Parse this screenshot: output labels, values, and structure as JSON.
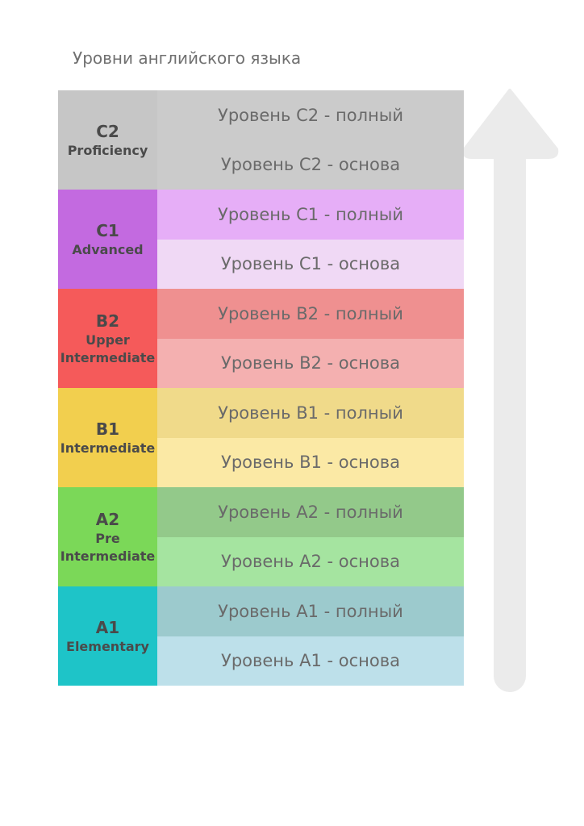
{
  "title": "Уровни английского языка",
  "levels": [
    {
      "code": "C2",
      "name": [
        "Proficiency"
      ],
      "sublevels": [
        "Уровень C2 - полный",
        "Уровень C2 - основа"
      ]
    },
    {
      "code": "C1",
      "name": [
        "Advanced"
      ],
      "sublevels": [
        "Уровень C1 - полный",
        "Уровень C1 - основа"
      ]
    },
    {
      "code": "B2",
      "name": [
        "Upper",
        "Intermediate"
      ],
      "sublevels": [
        "Уровень B2 - полный",
        "Уровень B2 - основа"
      ]
    },
    {
      "code": "B1",
      "name": [
        "Intermediate"
      ],
      "sublevels": [
        "Уровень B1 - полный",
        "Уровень B1 - основа"
      ]
    },
    {
      "code": "A2",
      "name": [
        "Pre",
        "Intermediate"
      ],
      "sublevels": [
        "Уровень A2 - полный",
        "Уровень A2 - основа"
      ]
    },
    {
      "code": "A1",
      "name": [
        "Elementary"
      ],
      "sublevels": [
        "Уровень A1 - полный",
        "Уровень A1 - основа"
      ]
    }
  ]
}
